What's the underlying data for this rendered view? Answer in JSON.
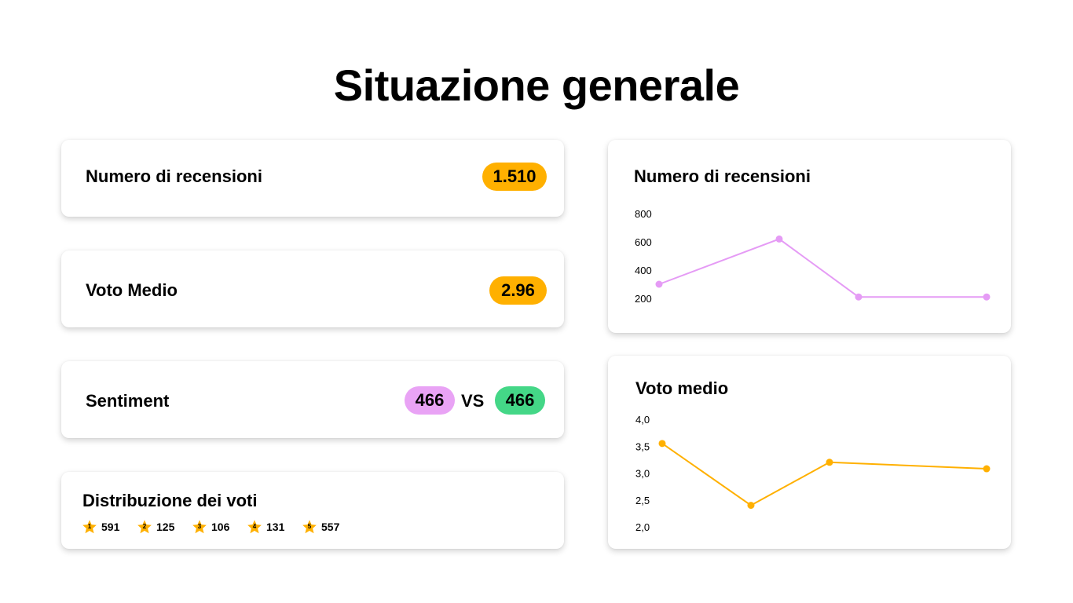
{
  "page": {
    "title": "Situazione generale"
  },
  "kpis": {
    "reviews": {
      "label": "Numero di recensioni",
      "value": "1.510"
    },
    "average": {
      "label": "Voto Medio",
      "value": "2.96"
    },
    "sentiment": {
      "label": "Sentiment",
      "negative": "466",
      "vs": "VS",
      "positive": "466"
    }
  },
  "distribution": {
    "title": "Distribuzione dei voti",
    "items": [
      {
        "star": "1",
        "count": "591"
      },
      {
        "star": "2",
        "count": "125"
      },
      {
        "star": "3",
        "count": "106"
      },
      {
        "star": "4",
        "count": "131"
      },
      {
        "star": "5",
        "count": "557"
      }
    ]
  },
  "colors": {
    "orange": "#FFB000",
    "pink": "#E9A3F5",
    "green": "#44D787",
    "pinkLine": "#E59BF5",
    "orangeLine": "#FFB000"
  },
  "chart_data": [
    {
      "type": "line",
      "title": "Numero di recensioni",
      "x": [
        1,
        2,
        3,
        4
      ],
      "series": [
        {
          "values": [
            300,
            620,
            210,
            210
          ]
        }
      ],
      "yticks": [
        "800",
        "600",
        "400",
        "200"
      ],
      "ylim": [
        200,
        800
      ],
      "grid": false,
      "legend": "none"
    },
    {
      "type": "line",
      "title": "Voto medio",
      "x": [
        1,
        2,
        3,
        4
      ],
      "series": [
        {
          "values": [
            3.55,
            2.4,
            3.2,
            3.08
          ]
        }
      ],
      "yticks": [
        "4,0",
        "3,5",
        "3,0",
        "2,5",
        "2,0"
      ],
      "ylim": [
        2.0,
        4.0
      ],
      "grid": false,
      "legend": "none"
    }
  ]
}
